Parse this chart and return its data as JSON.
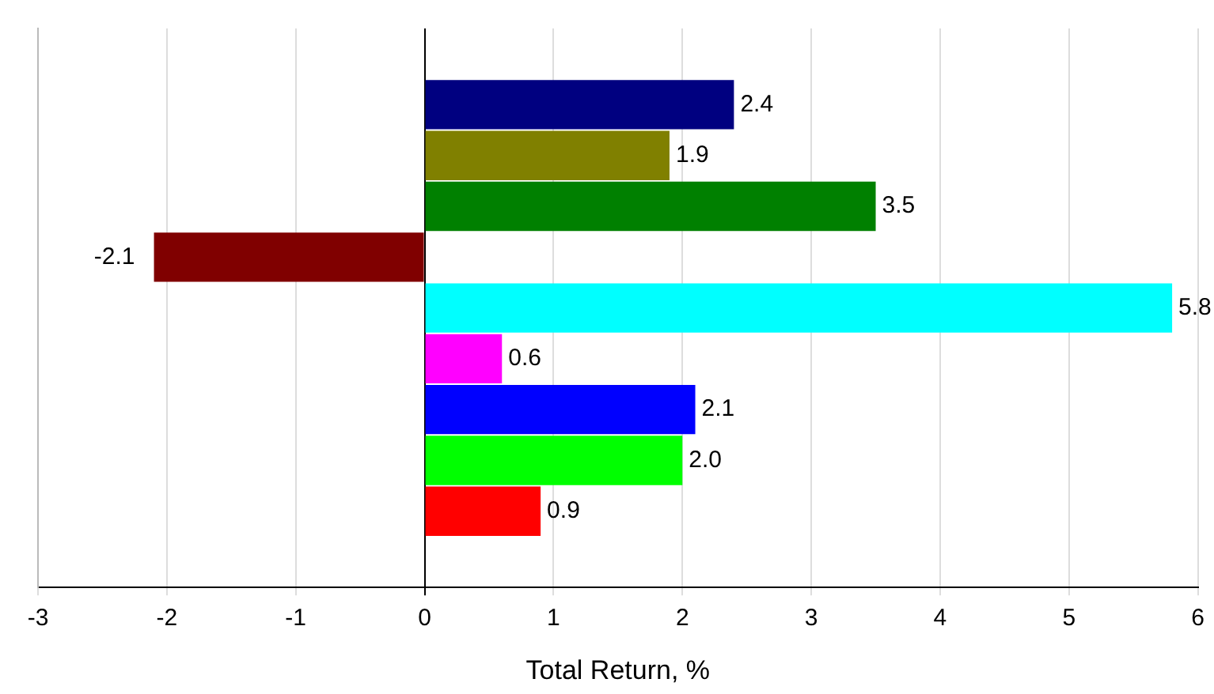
{
  "chart_data": {
    "type": "bar",
    "orientation": "horizontal",
    "xlabel": "Total Return, %",
    "categories": [
      null,
      null,
      null,
      null,
      null,
      null,
      null,
      null,
      null,
      null,
      null
    ],
    "values": [
      null,
      2.4,
      1.9,
      3.5,
      -2.1,
      5.8,
      0.6,
      2.1,
      2.0,
      0.9,
      null
    ],
    "value_labels": [
      null,
      "2.4",
      "1.9",
      "3.5",
      "-2.1",
      "5.8",
      "0.6",
      "2.1",
      "2.0",
      "0.9",
      null
    ],
    "colors": [
      "#ffffff",
      "#000080",
      "#808000",
      "#008000",
      "#800000",
      "#00ffff",
      "#ff00ff",
      "#0000ff",
      "#00ff00",
      "#ff0000",
      "#ffffff"
    ],
    "xlim": [
      -3,
      6
    ],
    "xticks": [
      -3,
      -2,
      -1,
      0,
      1,
      2,
      3,
      4,
      5,
      6
    ],
    "grid": "x",
    "tick_labels": "x",
    "legend": false
  }
}
